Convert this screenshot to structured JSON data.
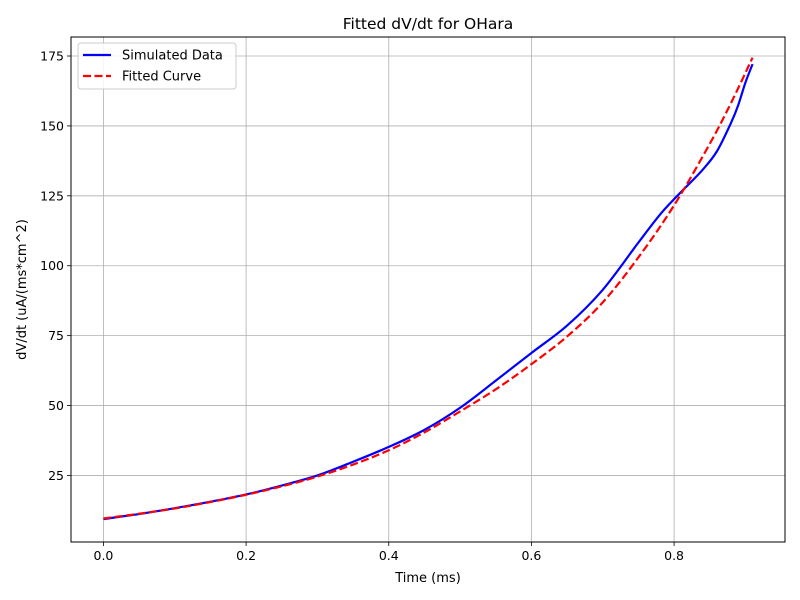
{
  "chart_data": {
    "type": "line",
    "title": "Fitted dV/dt for OHara",
    "xlabel": "Time (ms)",
    "ylabel": "dV/dt (uA/(ms*cm^2)",
    "xlim": [
      -0.0455,
      0.9555
    ],
    "ylim": [
      1.2,
      181.8
    ],
    "xticks": [
      0.0,
      0.2,
      0.4,
      0.6,
      0.8
    ],
    "xtick_labels": [
      "0.0",
      "0.2",
      "0.4",
      "0.6",
      "0.8"
    ],
    "yticks": [
      25,
      50,
      75,
      100,
      125,
      150,
      175
    ],
    "ytick_labels": [
      "25",
      "50",
      "75",
      "100",
      "125",
      "150",
      "175"
    ],
    "grid": true,
    "legend_position": "top-left",
    "series": [
      {
        "name": "Simulated Data",
        "color": "#0000ff",
        "style": "solid",
        "x": [
          0.0,
          0.05,
          0.1,
          0.15,
          0.2,
          0.25,
          0.3,
          0.35,
          0.4,
          0.45,
          0.5,
          0.55,
          0.6,
          0.65,
          0.7,
          0.75,
          0.78,
          0.8,
          0.82,
          0.84,
          0.86,
          0.88,
          0.89,
          0.9,
          0.91
        ],
        "y": [
          9.4,
          11.2,
          13.3,
          15.6,
          18.2,
          21.4,
          25.0,
          29.9,
          35.2,
          41.3,
          49.2,
          58.9,
          68.8,
          78.6,
          91.4,
          108.3,
          118.2,
          123.8,
          129.0,
          134.3,
          140.9,
          151.2,
          157.5,
          165.5,
          172.1
        ]
      },
      {
        "name": "Fitted Curve",
        "color": "#ff0000",
        "style": "dashed",
        "x": [
          0.0,
          0.05,
          0.1,
          0.15,
          0.2,
          0.25,
          0.3,
          0.35,
          0.4,
          0.45,
          0.5,
          0.55,
          0.6,
          0.65,
          0.7,
          0.75,
          0.8,
          0.85,
          0.88,
          0.91
        ],
        "y": [
          9.6,
          11.3,
          13.2,
          15.5,
          18.1,
          21.1,
          24.6,
          28.9,
          34.0,
          40.4,
          47.9,
          55.8,
          64.8,
          74.7,
          86.9,
          103.0,
          121.6,
          143.6,
          158.3,
          174.4
        ]
      }
    ]
  }
}
